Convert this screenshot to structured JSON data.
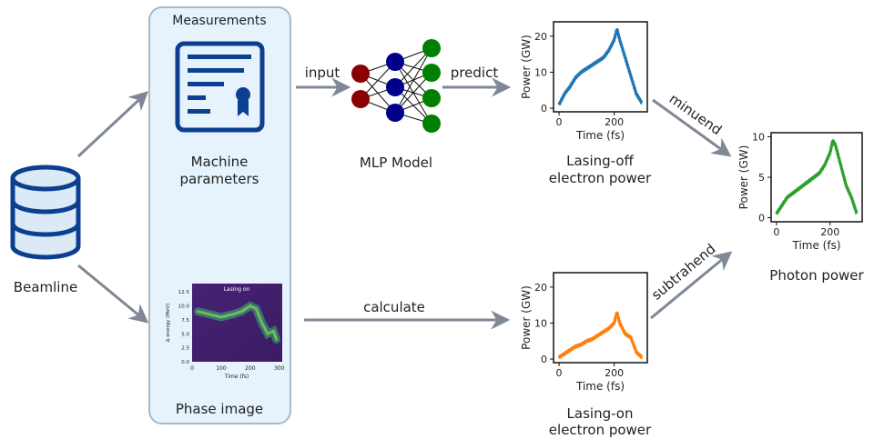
{
  "nodes": {
    "beamline": "Beamline",
    "measurements": "Measurements",
    "machine_params_line1": "Machine",
    "machine_params_line2": "parameters",
    "phase_image": "Phase image",
    "mlp_model": "MLP Model",
    "lasing_off_line1": "Lasing-off",
    "lasing_off_line2": "electron power",
    "lasing_on_line1": "Lasing-on",
    "lasing_on_line2": "electron power",
    "photon_power": "Photon power"
  },
  "edges": {
    "input": "input",
    "predict": "predict",
    "calculate": "calculate",
    "minuend": "minuend",
    "subtrahend": "subtrahend"
  },
  "colors": {
    "arrow": "#7f8894",
    "panel_fill": "#e6f3fc",
    "panel_stroke": "#a9b9c6",
    "icon_blue": "#0d3f91",
    "db_fill": "#dce9f7",
    "nn_input": "#8b0000",
    "nn_hidden": "#00008b",
    "nn_output": "#008000",
    "series_off": "#1f77b4",
    "series_on": "#ff7f0e",
    "series_photon": "#2ca02c"
  },
  "chart_data": [
    {
      "id": "lasing-off",
      "type": "line",
      "xlabel": "Time (fs)",
      "ylabel": "Power (GW)",
      "xticks": [
        "0",
        "200"
      ],
      "yticks": [
        "0",
        "10",
        "20"
      ],
      "xlim": [
        -20,
        320
      ],
      "ylim": [
        -1,
        24
      ],
      "x": [
        0,
        20,
        40,
        60,
        80,
        100,
        120,
        140,
        160,
        180,
        200,
        210,
        220,
        240,
        260,
        280,
        300
      ],
      "y": [
        1,
        4,
        6,
        8.5,
        10,
        11,
        12,
        13,
        14,
        16,
        19,
        22,
        19,
        14,
        9,
        4,
        1.5
      ]
    },
    {
      "id": "lasing-on",
      "type": "line",
      "xlabel": "Time (fs)",
      "ylabel": "Power (GW)",
      "xticks": [
        "0",
        "200"
      ],
      "yticks": [
        "0",
        "10",
        "20"
      ],
      "xlim": [
        -20,
        320
      ],
      "ylim": [
        -1,
        24
      ],
      "x": [
        0,
        20,
        40,
        60,
        80,
        100,
        120,
        140,
        160,
        180,
        200,
        210,
        220,
        240,
        260,
        280,
        300
      ],
      "y": [
        0.5,
        1.5,
        2.5,
        3.5,
        4,
        5,
        5.5,
        6.5,
        7.5,
        8.5,
        10,
        13,
        10,
        7,
        6,
        2,
        0.5
      ]
    },
    {
      "id": "photon",
      "type": "line",
      "xlabel": "Time (fs)",
      "ylabel": "Power (GW)",
      "xticks": [
        "0",
        "200"
      ],
      "yticks": [
        "0",
        "5",
        "10"
      ],
      "xlim": [
        -20,
        320
      ],
      "ylim": [
        -0.5,
        10.5
      ],
      "x": [
        0,
        20,
        40,
        60,
        80,
        100,
        120,
        140,
        160,
        180,
        200,
        210,
        220,
        240,
        260,
        280,
        300
      ],
      "y": [
        0.5,
        1.5,
        2.5,
        3,
        3.5,
        4,
        4.5,
        5,
        5.5,
        6.5,
        8,
        9.5,
        9,
        6.5,
        4,
        2.5,
        0.5
      ]
    },
    {
      "id": "phase-image",
      "type": "heatmap",
      "title": "Lasing on",
      "xlabel": "Time (fs)",
      "ylabel": "Δ energy (MeV)",
      "xticks": [
        "0",
        "100",
        "200",
        "300"
      ],
      "yticks": [
        "0.0",
        "2.5",
        "5.0",
        "7.5",
        "10.0",
        "12.5"
      ],
      "xlim": [
        0,
        310
      ],
      "ylim": [
        0,
        14
      ],
      "colors": [
        "#440154",
        "#31688e",
        "#35b779",
        "#6ece58"
      ],
      "trace_x": [
        20,
        60,
        100,
        140,
        170,
        200,
        220,
        240,
        260,
        280,
        290
      ],
      "trace_y": [
        9,
        8.5,
        8,
        8.5,
        9,
        10,
        9.5,
        7,
        5,
        5.5,
        4
      ]
    }
  ]
}
